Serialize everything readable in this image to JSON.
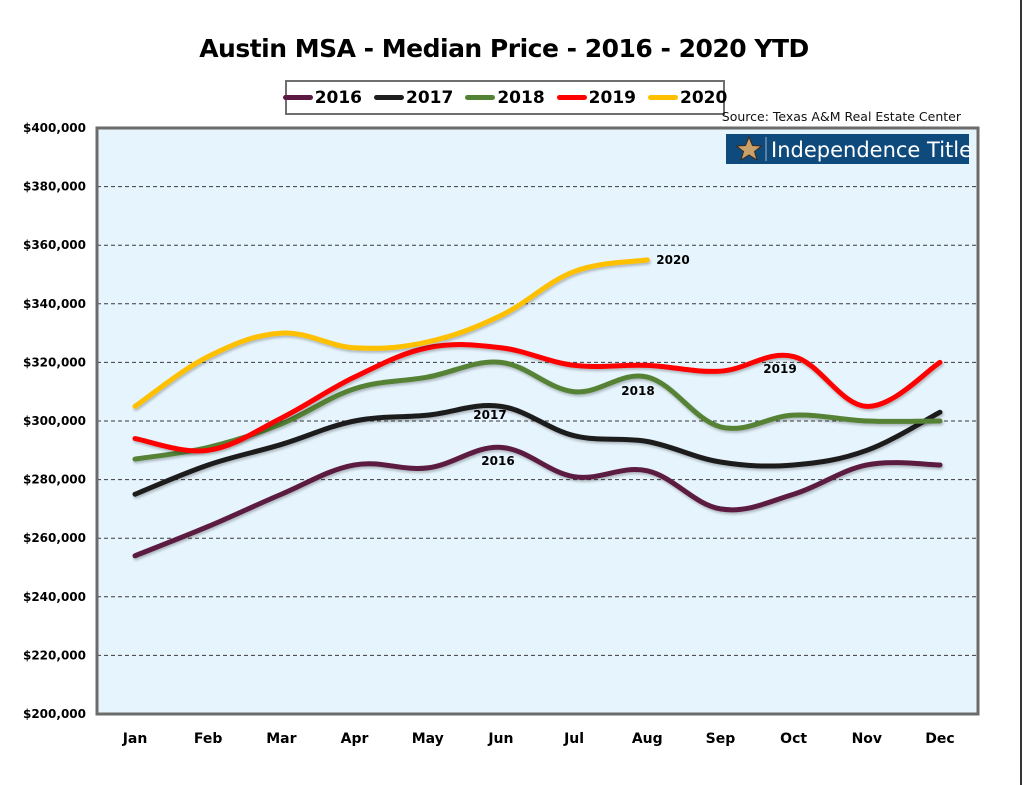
{
  "chart_data": {
    "type": "line",
    "title": "Austin MSA - Median Price - 2016 - 2020 YTD",
    "source": "Source: Texas A&M Real Estate Center",
    "logo_text": "Independence Title",
    "xlabel": "",
    "ylabel": "",
    "categories": [
      "Jan",
      "Feb",
      "Mar",
      "Apr",
      "May",
      "Jun",
      "Jul",
      "Aug",
      "Sep",
      "Oct",
      "Nov",
      "Dec"
    ],
    "ylim": [
      200000,
      400000
    ],
    "ytick_step": 20000,
    "ytick_labels": [
      "$200,000",
      "$220,000",
      "$240,000",
      "$260,000",
      "$280,000",
      "$300,000",
      "$320,000",
      "$340,000",
      "$360,000",
      "$380,000",
      "$400,000"
    ],
    "grid": "horizontal-dashed",
    "legend_position": "top-center",
    "series": [
      {
        "name": "2016",
        "color": "#5b1a42",
        "label": "2016",
        "values": [
          254000,
          264000,
          275000,
          285000,
          284000,
          291000,
          281000,
          283000,
          270000,
          275000,
          285000,
          285000
        ]
      },
      {
        "name": "2017",
        "color": "#1e1e1e",
        "label": "2017",
        "values": [
          275000,
          285000,
          292000,
          300000,
          302000,
          305000,
          295000,
          293000,
          286000,
          285000,
          290000,
          303000
        ]
      },
      {
        "name": "2018",
        "color": "#548235",
        "label": "2018",
        "values": [
          287000,
          291000,
          299000,
          311000,
          315000,
          320000,
          310000,
          315000,
          298000,
          302000,
          300000,
          300000
        ]
      },
      {
        "name": "2019",
        "color": "#ff0000",
        "label": "2019",
        "values": [
          294000,
          290000,
          301000,
          315000,
          325000,
          325000,
          319000,
          319000,
          317000,
          322000,
          305000,
          320000
        ]
      },
      {
        "name": "2020",
        "color": "#ffc000",
        "label": "2020",
        "values": [
          305000,
          322000,
          330000,
          325000,
          327000,
          336000,
          351000,
          355000,
          null,
          null,
          null,
          null
        ]
      }
    ],
    "annotations": [
      {
        "text": "2016",
        "series": "2016",
        "near": "Jun"
      },
      {
        "text": "2017",
        "series": "2017",
        "near": "Jun"
      },
      {
        "text": "2018",
        "series": "2018",
        "near": "Aug"
      },
      {
        "text": "2019",
        "series": "2019",
        "near": "Oct"
      },
      {
        "text": "2020",
        "series": "2020",
        "near": "Aug"
      }
    ]
  }
}
